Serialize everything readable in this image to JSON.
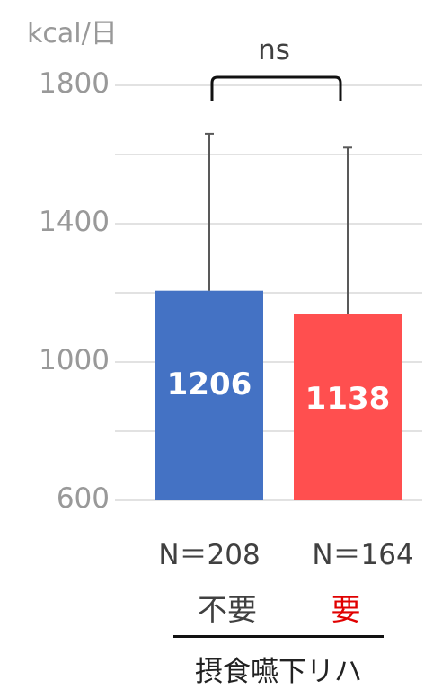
{
  "chart_data": {
    "type": "bar",
    "ylabel": "kcal/日",
    "ylim": [
      600,
      1800
    ],
    "yticks": [
      600,
      1000,
      1400,
      1800
    ],
    "grid": true,
    "categories": [
      "不要",
      "要"
    ],
    "values": [
      1206,
      1138
    ],
    "error_upper": [
      1660,
      1620
    ],
    "sample_labels": [
      "N＝208",
      "N＝164"
    ],
    "value_labels": [
      "1206",
      "1138"
    ],
    "group_label": "摂食嚥下リハ",
    "significance": "ns",
    "colors": [
      "#4472c4",
      "#ff4f4f"
    ],
    "category_colors": [
      "#404040",
      "#e00000"
    ]
  }
}
